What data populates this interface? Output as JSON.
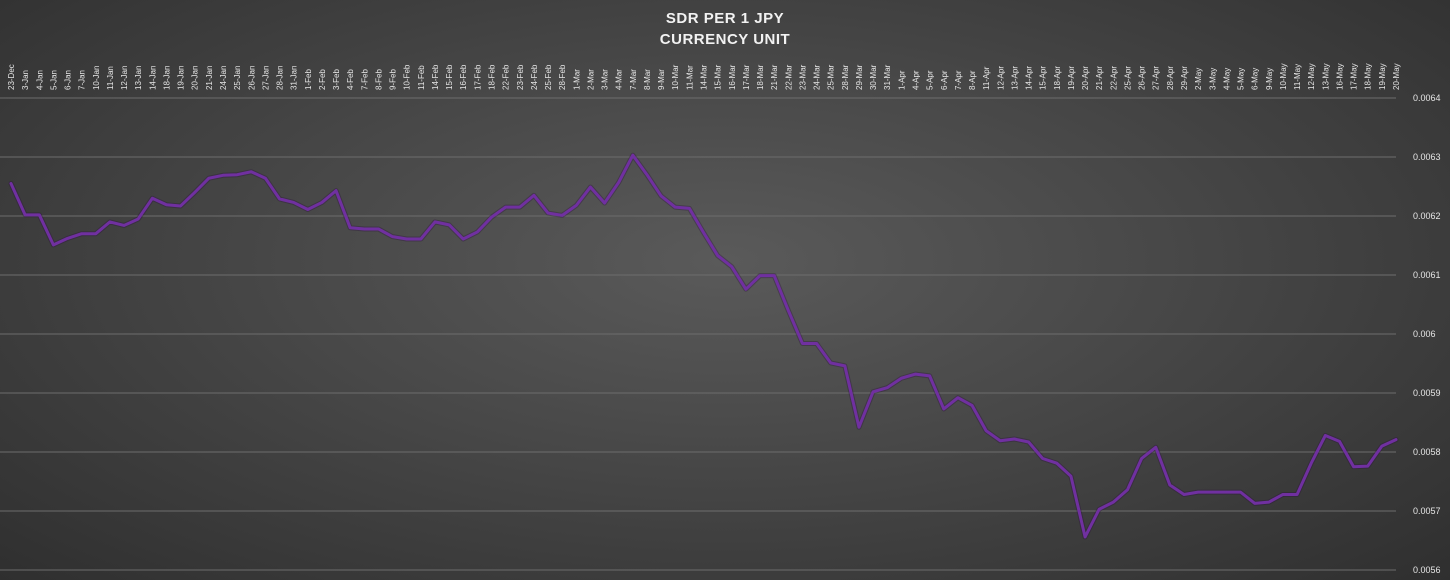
{
  "chart_data": {
    "type": "line",
    "title": [
      "SDR PER 1 JPY",
      "CURRENCY UNIT"
    ],
    "xlabel": "",
    "ylabel": "",
    "ylim": [
      0.0056,
      0.0064
    ],
    "yticks": [
      "0.0056",
      "0.0057",
      "0.0058",
      "0.0059",
      "0.006",
      "0.0061",
      "0.0062",
      "0.0063",
      "0.0064"
    ],
    "grid": true,
    "line_color": "#7030a0",
    "categories": [
      "23-Dec",
      "3-Jan",
      "4-Jan",
      "5-Jan",
      "6-Jan",
      "7-Jan",
      "10-Jan",
      "11-Jan",
      "12-Jan",
      "13-Jan",
      "14-Jan",
      "18-Jan",
      "19-Jan",
      "20-Jan",
      "21-Jan",
      "24-Jan",
      "25-Jan",
      "26-Jan",
      "27-Jan",
      "28-Jan",
      "31-Jan",
      "1-Feb",
      "2-Feb",
      "3-Feb",
      "4-Feb",
      "7-Feb",
      "8-Feb",
      "9-Feb",
      "10-Feb",
      "11-Feb",
      "14-Feb",
      "15-Feb",
      "16-Feb",
      "17-Feb",
      "18-Feb",
      "22-Feb",
      "23-Feb",
      "24-Feb",
      "25-Feb",
      "28-Feb",
      "1-Mar",
      "2-Mar",
      "3-Mar",
      "4-Mar",
      "7-Mar",
      "8-Mar",
      "9-Mar",
      "10-Mar",
      "11-Mar",
      "14-Mar",
      "15-Mar",
      "16-Mar",
      "17-Mar",
      "18-Mar",
      "21-Mar",
      "22-Mar",
      "23-Mar",
      "24-Mar",
      "25-Mar",
      "28-Mar",
      "29-Mar",
      "30-Mar",
      "31-Mar",
      "1-Apr",
      "4-Apr",
      "5-Apr",
      "6-Apr",
      "7-Apr",
      "8-Apr",
      "11-Apr",
      "12-Apr",
      "13-Apr",
      "14-Apr",
      "15-Apr",
      "18-Apr",
      "19-Apr",
      "20-Apr",
      "21-Apr",
      "22-Apr",
      "25-Apr",
      "26-Apr",
      "27-Apr",
      "28-Apr",
      "29-Apr",
      "2-May",
      "3-May",
      "4-May",
      "5-May",
      "6-May",
      "9-May",
      "10-May",
      "11-May",
      "12-May",
      "13-May",
      "16-May",
      "17-May",
      "18-May",
      "19-May",
      "20-May"
    ],
    "series": [
      {
        "values": [
          0.006255,
          0.006202,
          0.006202,
          0.006151,
          0.006162,
          0.00617,
          0.00617,
          0.00619,
          0.006184,
          0.006195,
          0.00623,
          0.006219,
          0.006217,
          0.00624,
          0.006264,
          0.006269,
          0.00627,
          0.006275,
          0.006264,
          0.006229,
          0.006223,
          0.006211,
          0.006223,
          0.006243,
          0.00618,
          0.006178,
          0.006178,
          0.006165,
          0.006161,
          0.006161,
          0.00619,
          0.006185,
          0.006161,
          0.006173,
          0.006198,
          0.006215,
          0.006215,
          0.006235,
          0.006205,
          0.006201,
          0.006218,
          0.006249,
          0.006222,
          0.006257,
          0.006303,
          0.00627,
          0.006234,
          0.006215,
          0.006213,
          0.006172,
          0.006133,
          0.006114,
          0.006076,
          0.006099,
          0.006099,
          0.00604,
          0.005984,
          0.005984,
          0.005951,
          0.005946,
          0.005842,
          0.005902,
          0.005909,
          0.005925,
          0.005932,
          0.005929,
          0.005873,
          0.005892,
          0.005879,
          0.005836,
          0.005819,
          0.005822,
          0.005817,
          0.005789,
          0.005781,
          0.005759,
          0.005656,
          0.005703,
          0.005715,
          0.005736,
          0.005789,
          0.005808,
          0.005744,
          0.005728,
          0.005732,
          0.005732,
          0.005732,
          0.005732,
          0.005713,
          0.005715,
          0.005728,
          0.005728,
          0.005781,
          0.005828,
          0.005818,
          0.005775,
          0.005776,
          0.00581,
          0.005821
        ]
      }
    ]
  }
}
